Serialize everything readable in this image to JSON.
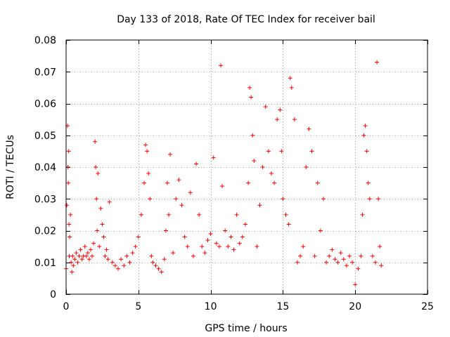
{
  "chart_data": {
    "type": "scatter",
    "title": "Day 133 of 2018, Rate Of TEC Index for receiver bail",
    "xlabel": "GPS time / hours",
    "ylabel": "ROTI / TECUs",
    "xlim": [
      0,
      25
    ],
    "ylim": [
      0,
      0.08
    ],
    "xticks": [
      0,
      5,
      10,
      15,
      20,
      25
    ],
    "xtick_labels": [
      "0",
      "5",
      "10",
      "15",
      "20",
      "25"
    ],
    "yticks": [
      0,
      0.01,
      0.02,
      0.03,
      0.04,
      0.05,
      0.06,
      0.07,
      0.08
    ],
    "ytick_labels": [
      "0",
      "0.01",
      "0.02",
      "0.03",
      "0.04",
      "0.05",
      "0.06",
      "0.07",
      "0.08"
    ],
    "grid": true,
    "marker": "+",
    "color": "#ff0000",
    "series": [
      {
        "name": "ROTI",
        "x": [
          0.0,
          0.05,
          0.1,
          0.12,
          0.15,
          0.18,
          0.2,
          0.22,
          0.25,
          0.3,
          0.35,
          0.4,
          0.45,
          0.5,
          0.6,
          0.7,
          0.8,
          0.9,
          1.0,
          1.1,
          1.2,
          1.3,
          1.4,
          1.5,
          1.6,
          1.7,
          1.8,
          1.9,
          2.0,
          2.05,
          2.1,
          2.15,
          2.2,
          2.3,
          2.4,
          2.5,
          2.6,
          2.7,
          2.8,
          2.9,
          3.0,
          3.2,
          3.4,
          3.6,
          3.8,
          4.0,
          4.2,
          4.4,
          4.6,
          4.8,
          5.0,
          5.2,
          5.4,
          5.5,
          5.6,
          5.7,
          5.8,
          5.9,
          6.0,
          6.2,
          6.4,
          6.6,
          6.8,
          6.9,
          7.0,
          7.1,
          7.2,
          7.4,
          7.6,
          7.8,
          8.0,
          8.2,
          8.4,
          8.6,
          8.8,
          9.0,
          9.2,
          9.4,
          9.6,
          9.8,
          10.0,
          10.2,
          10.4,
          10.6,
          10.7,
          10.8,
          11.0,
          11.2,
          11.4,
          11.6,
          11.8,
          12.0,
          12.2,
          12.4,
          12.6,
          12.7,
          12.8,
          12.9,
          13.0,
          13.2,
          13.4,
          13.6,
          13.8,
          14.0,
          14.2,
          14.4,
          14.6,
          14.8,
          14.9,
          15.0,
          15.2,
          15.4,
          15.5,
          15.6,
          15.8,
          16.0,
          16.2,
          16.4,
          16.6,
          16.8,
          17.0,
          17.2,
          17.4,
          17.6,
          17.8,
          18.0,
          18.2,
          18.4,
          18.6,
          18.8,
          19.0,
          19.2,
          19.4,
          19.6,
          19.8,
          20.0,
          20.2,
          20.4,
          20.5,
          20.6,
          20.7,
          20.8,
          20.9,
          21.0,
          21.2,
          21.4,
          21.5,
          21.6,
          21.7,
          21.8
        ],
        "y": [
          0.008,
          0.028,
          0.053,
          0.04,
          0.035,
          0.045,
          0.022,
          0.012,
          0.018,
          0.025,
          0.01,
          0.007,
          0.012,
          0.009,
          0.011,
          0.013,
          0.01,
          0.012,
          0.014,
          0.011,
          0.012,
          0.015,
          0.012,
          0.013,
          0.011,
          0.014,
          0.012,
          0.016,
          0.048,
          0.04,
          0.03,
          0.02,
          0.038,
          0.015,
          0.027,
          0.022,
          0.018,
          0.012,
          0.014,
          0.011,
          0.029,
          0.01,
          0.009,
          0.008,
          0.011,
          0.009,
          0.012,
          0.01,
          0.013,
          0.015,
          0.018,
          0.025,
          0.035,
          0.047,
          0.045,
          0.038,
          0.03,
          0.012,
          0.01,
          0.009,
          0.008,
          0.007,
          0.011,
          0.02,
          0.035,
          0.025,
          0.044,
          0.013,
          0.03,
          0.036,
          0.028,
          0.018,
          0.015,
          0.032,
          0.012,
          0.041,
          0.025,
          0.015,
          0.013,
          0.017,
          0.019,
          0.043,
          0.016,
          0.015,
          0.072,
          0.034,
          0.02,
          0.015,
          0.018,
          0.014,
          0.025,
          0.016,
          0.018,
          0.022,
          0.035,
          0.065,
          0.062,
          0.05,
          0.042,
          0.015,
          0.028,
          0.04,
          0.059,
          0.045,
          0.038,
          0.035,
          0.055,
          0.058,
          0.045,
          0.03,
          0.025,
          0.022,
          0.068,
          0.065,
          0.055,
          0.01,
          0.012,
          0.015,
          0.04,
          0.052,
          0.045,
          0.012,
          0.035,
          0.02,
          0.03,
          0.01,
          0.012,
          0.014,
          0.011,
          0.01,
          0.013,
          0.011,
          0.009,
          0.012,
          0.01,
          0.003,
          0.008,
          0.012,
          0.025,
          0.05,
          0.053,
          0.045,
          0.035,
          0.03,
          0.012,
          0.01,
          0.073,
          0.03,
          0.015,
          0.009
        ]
      }
    ]
  }
}
